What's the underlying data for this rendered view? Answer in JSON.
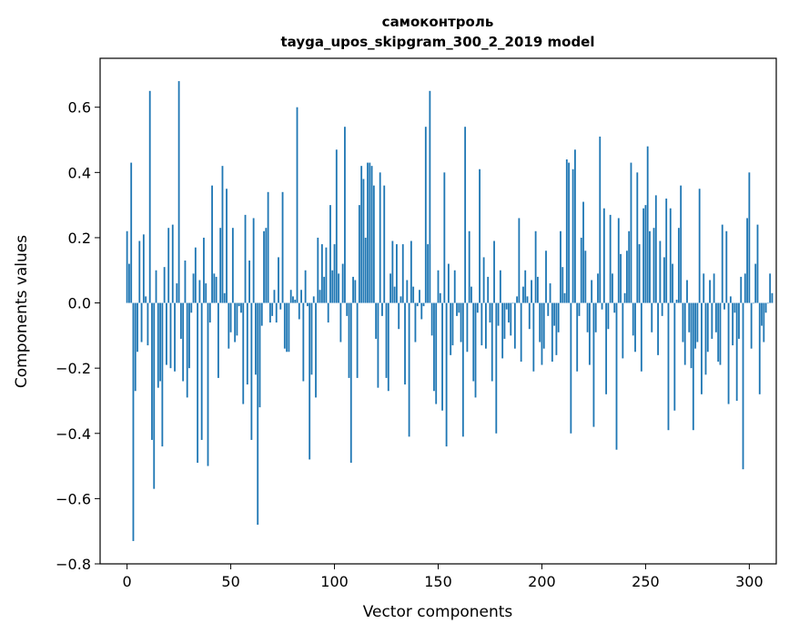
{
  "chart_data": {
    "type": "bar",
    "title": "самоконтроль",
    "subtitle": "tayga_upos_skipgram_300_2_2019 model",
    "xlabel": "Vector components",
    "ylabel": "Components values",
    "xlim": [
      -13,
      313
    ],
    "ylim": [
      -0.8,
      0.75
    ],
    "xticks": [
      0,
      50,
      100,
      150,
      200,
      250,
      300
    ],
    "xtick_labels": [
      "0",
      "50",
      "100",
      "150",
      "200",
      "250",
      "300"
    ],
    "yticks": [
      -0.8,
      -0.6,
      -0.4,
      -0.2,
      0.0,
      0.2,
      0.4,
      0.6
    ],
    "ytick_labels": [
      "−0.8",
      "−0.6",
      "−0.4",
      "−0.2",
      "0.0",
      "0.2",
      "0.4",
      "0.6"
    ],
    "grid": false,
    "bar_color": "#1f77b4",
    "values": [
      0.22,
      0.12,
      0.43,
      -0.73,
      -0.27,
      -0.15,
      0.19,
      -0.12,
      0.21,
      0.02,
      -0.13,
      0.65,
      -0.42,
      -0.57,
      0.1,
      -0.26,
      -0.24,
      -0.44,
      0.11,
      -0.19,
      0.23,
      -0.2,
      0.24,
      -0.21,
      0.06,
      0.68,
      -0.11,
      -0.24,
      0.13,
      -0.29,
      -0.2,
      -0.03,
      0.09,
      0.17,
      -0.49,
      0.07,
      -0.42,
      0.2,
      0.06,
      -0.5,
      -0.06,
      0.36,
      0.09,
      0.08,
      -0.23,
      0.23,
      0.42,
      0.03,
      0.35,
      -0.14,
      -0.09,
      0.23,
      -0.12,
      -0.1,
      -0.01,
      -0.03,
      -0.31,
      0.27,
      -0.25,
      0.13,
      -0.42,
      0.26,
      -0.22,
      -0.68,
      -0.32,
      -0.07,
      0.22,
      0.23,
      0.34,
      -0.06,
      -0.04,
      0.04,
      -0.06,
      0.14,
      -0.02,
      0.34,
      -0.14,
      -0.15,
      -0.15,
      0.04,
      0.02,
      0.01,
      0.6,
      -0.05,
      0.04,
      -0.24,
      0.1,
      -0.01,
      -0.48,
      -0.22,
      0.02,
      -0.29,
      0.2,
      0.04,
      0.18,
      0.08,
      0.17,
      -0.06,
      0.3,
      0.1,
      0.18,
      0.47,
      0.09,
      -0.12,
      0.12,
      0.54,
      -0.04,
      -0.23,
      -0.49,
      0.08,
      0.07,
      -0.23,
      0.3,
      0.42,
      0.38,
      0.2,
      0.43,
      0.43,
      0.42,
      0.36,
      -0.11,
      -0.26,
      0.4,
      -0.04,
      0.36,
      -0.23,
      -0.27,
      0.09,
      0.19,
      0.05,
      0.18,
      -0.08,
      0.02,
      0.18,
      -0.25,
      0.07,
      -0.41,
      0.19,
      0.05,
      -0.12,
      -0.01,
      0.04,
      -0.05,
      -0.01,
      0.54,
      0.18,
      0.65,
      -0.1,
      -0.27,
      -0.31,
      0.1,
      0.03,
      -0.33,
      0.4,
      -0.44,
      0.12,
      -0.16,
      -0.13,
      0.1,
      -0.04,
      -0.03,
      -0.12,
      -0.41,
      0.54,
      -0.15,
      0.22,
      0.05,
      -0.24,
      -0.29,
      -0.03,
      0.41,
      -0.13,
      0.14,
      -0.14,
      0.08,
      -0.06,
      -0.24,
      0.19,
      -0.4,
      -0.07,
      0.1,
      -0.17,
      -0.11,
      -0.02,
      -0.06,
      -0.1,
      0.0,
      -0.14,
      0.02,
      0.26,
      -0.18,
      0.05,
      0.1,
      0.02,
      -0.08,
      0.07,
      -0.21,
      0.22,
      0.08,
      -0.12,
      -0.19,
      -0.14,
      0.16,
      -0.04,
      0.06,
      -0.18,
      -0.07,
      -0.16,
      -0.09,
      0.22,
      0.11,
      0.03,
      0.44,
      0.43,
      -0.4,
      0.41,
      0.47,
      -0.21,
      -0.04,
      0.2,
      0.31,
      0.16,
      -0.09,
      -0.19,
      0.07,
      -0.38,
      -0.09,
      0.09,
      0.51,
      -0.02,
      0.29,
      -0.28,
      -0.08,
      0.27,
      0.09,
      -0.03,
      -0.45,
      0.26,
      0.15,
      -0.17,
      0.03,
      0.16,
      0.22,
      0.43,
      -0.1,
      -0.15,
      0.4,
      0.18,
      -0.21,
      0.29,
      0.3,
      0.48,
      0.22,
      -0.09,
      0.23,
      0.33,
      -0.16,
      0.19,
      -0.04,
      0.14,
      0.32,
      -0.39,
      0.29,
      0.12,
      -0.33,
      0.01,
      0.23,
      0.36,
      -0.12,
      -0.19,
      0.07,
      -0.09,
      -0.2,
      -0.39,
      -0.14,
      -0.12,
      0.35,
      -0.28,
      0.09,
      -0.22,
      -0.15,
      0.07,
      -0.11,
      0.09,
      -0.09,
      -0.18,
      -0.19,
      0.24,
      -0.02,
      0.22,
      -0.31,
      0.02,
      -0.13,
      -0.03,
      -0.3,
      -0.11,
      0.08,
      -0.51,
      0.09,
      0.26,
      0.4,
      -0.14,
      0.0,
      0.12,
      0.24,
      -0.28,
      -0.07,
      -0.12,
      -0.03,
      0.0,
      0.09,
      0.03
    ]
  }
}
